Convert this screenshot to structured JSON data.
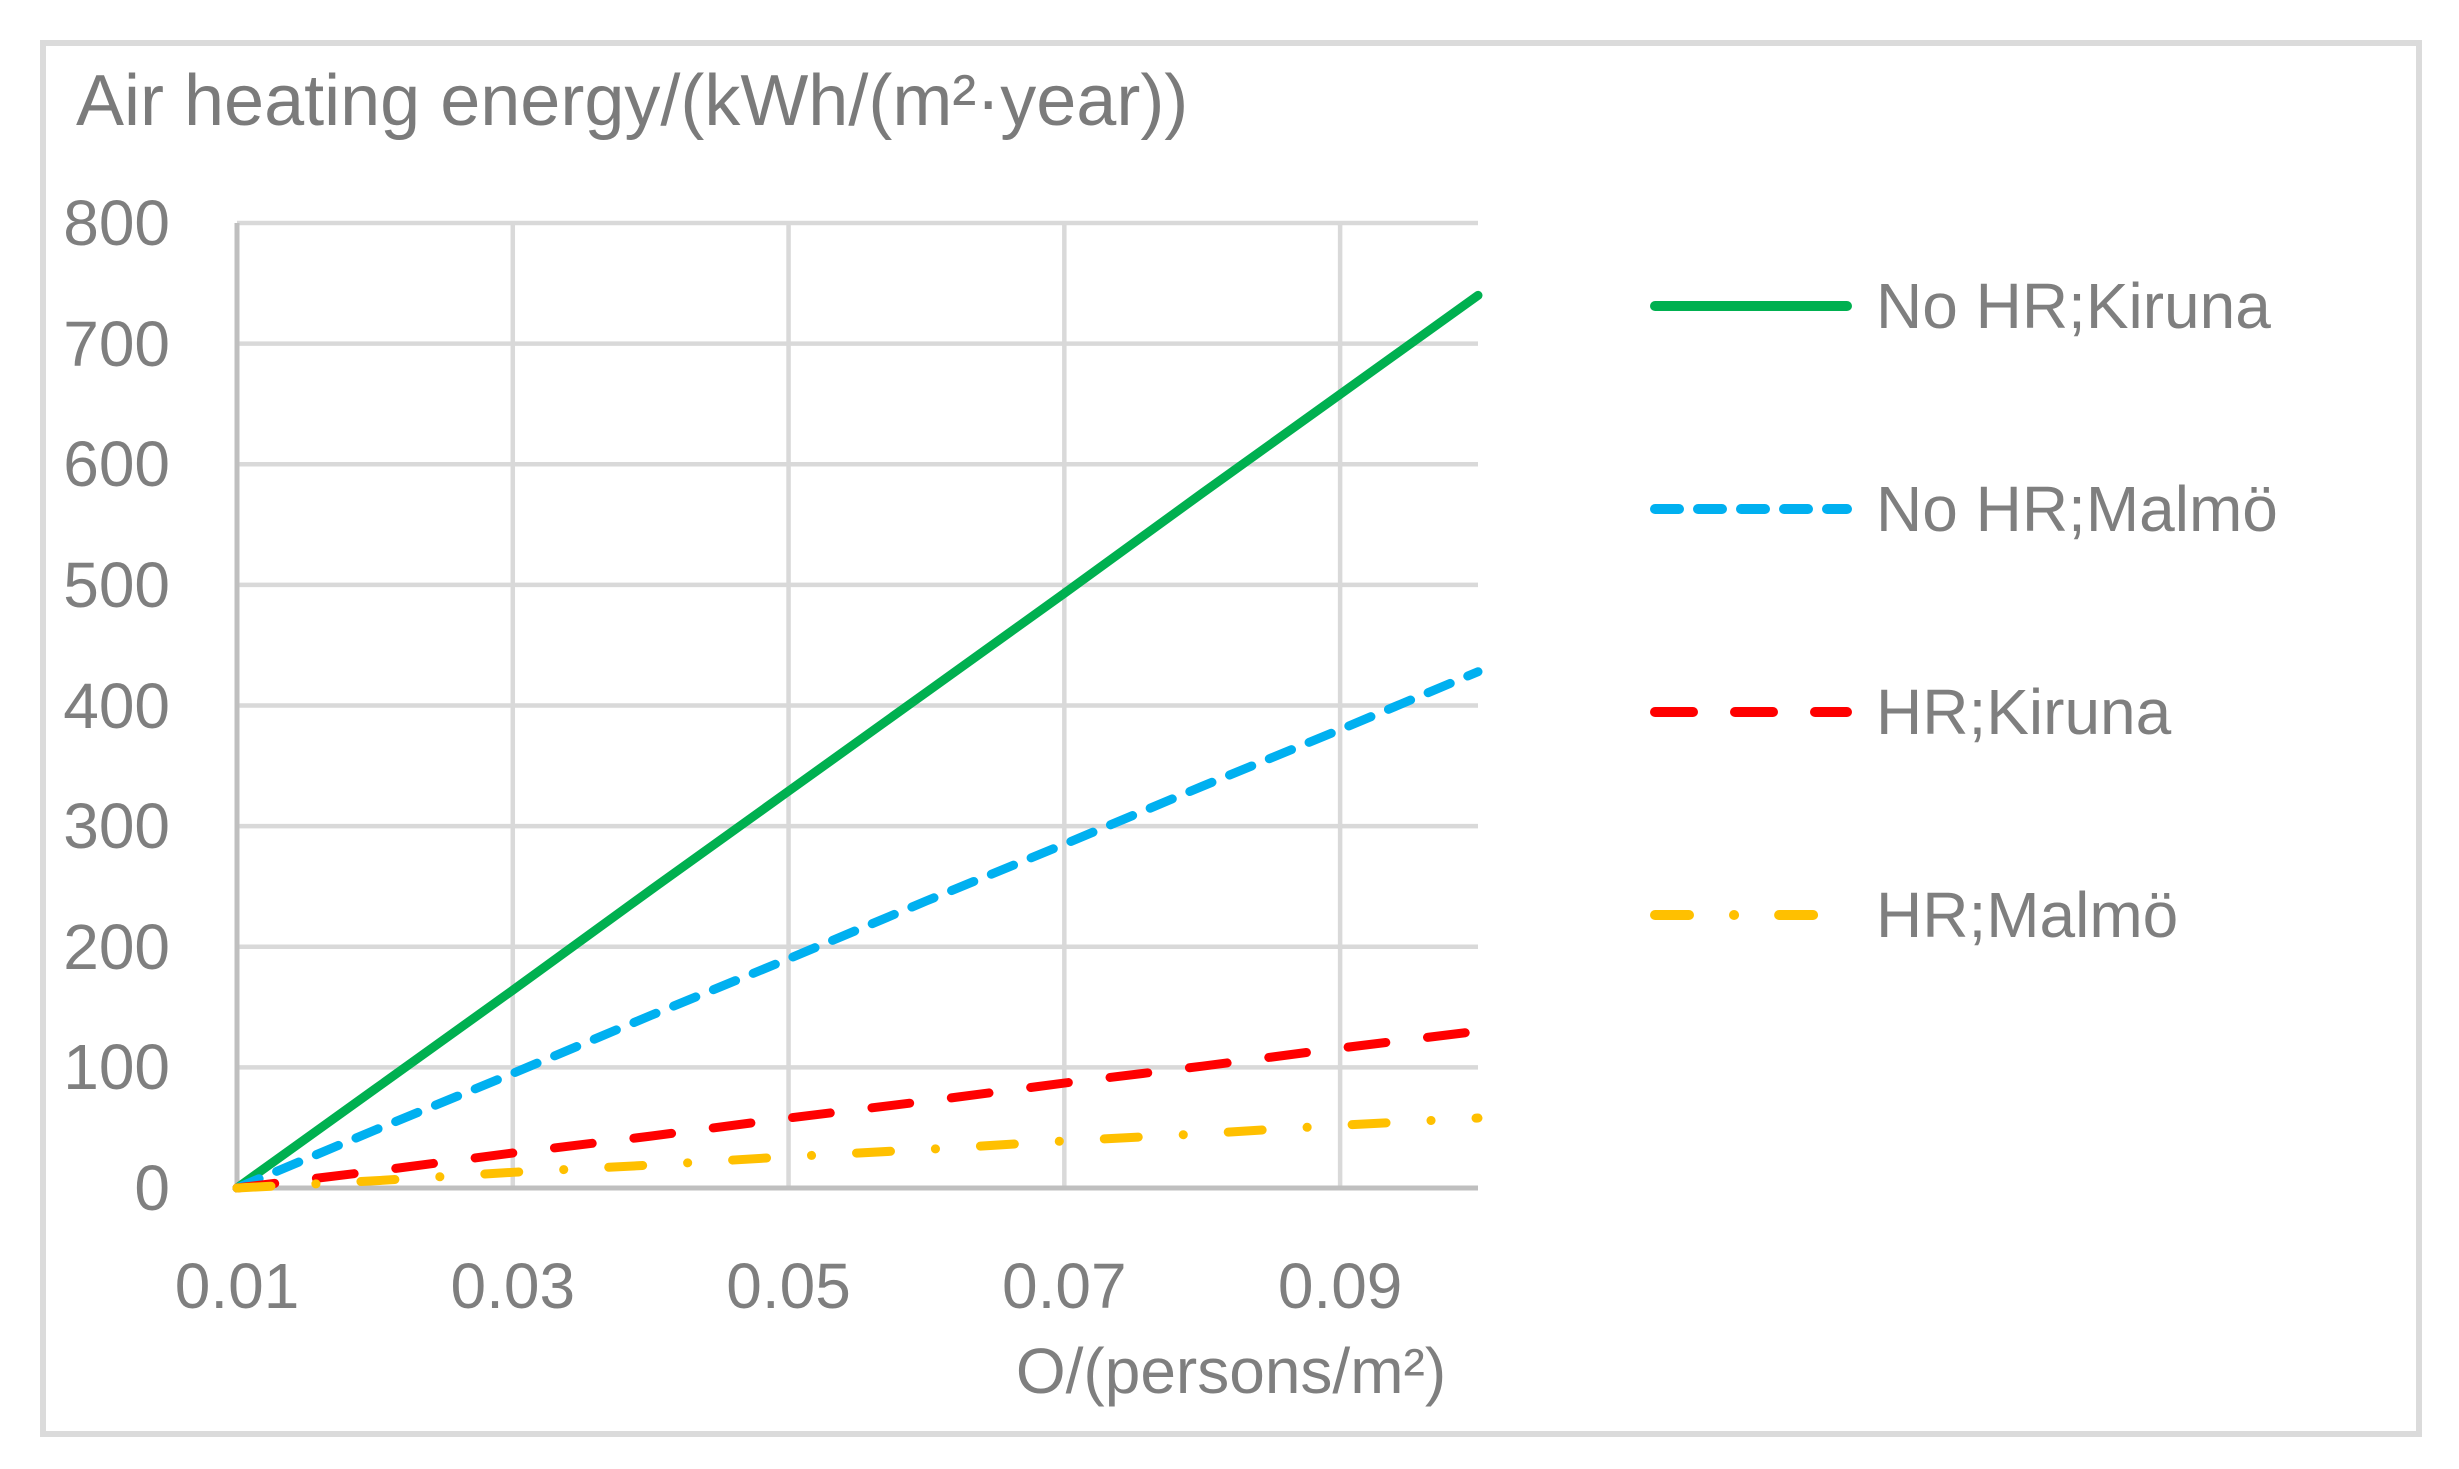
{
  "chart_data": {
    "type": "line",
    "title": "Air heating energy/(kWh/(m²·year))",
    "xlabel": "O/(persons/m²)",
    "ylabel": "",
    "xlim": [
      0.01,
      0.1
    ],
    "ylim": [
      0,
      800
    ],
    "x_ticks": [
      0.01,
      0.03,
      0.05,
      0.07,
      0.09
    ],
    "x_tick_labels": [
      "0.01",
      "0.03",
      "0.05",
      "0.07",
      "0.09"
    ],
    "x_gridlines": [
      0.03,
      0.05,
      0.07,
      0.09
    ],
    "y_ticks": [
      0,
      100,
      200,
      300,
      400,
      500,
      600,
      700,
      800
    ],
    "y_tick_labels": [
      "0",
      "100",
      "200",
      "300",
      "400",
      "500",
      "600",
      "700",
      "800"
    ],
    "grid": true,
    "legend_position": "right",
    "x": [
      0.01,
      0.02,
      0.03,
      0.04,
      0.05,
      0.06,
      0.07,
      0.08,
      0.09,
      0.1
    ],
    "series": [
      {
        "name": "No HR;Kiruna",
        "color": "#00B050",
        "style": "solid",
        "values": [
          0,
          82,
          164,
          247,
          329,
          411,
          493,
          576,
          658,
          740
        ]
      },
      {
        "name": "No HR;Malmö",
        "color": "#00B0F0",
        "style": "dashed",
        "values": [
          0,
          48,
          95,
          143,
          190,
          238,
          285,
          333,
          380,
          428
        ]
      },
      {
        "name": "HR;Kiruna",
        "color": "#FF0000",
        "style": "long-dash",
        "values": [
          0,
          14,
          29,
          43,
          58,
          72,
          87,
          101,
          116,
          130
        ]
      },
      {
        "name": "HR;Malmö",
        "color": "#FFC000",
        "style": "dash-dot",
        "values": [
          0,
          6,
          13,
          19,
          26,
          32,
          39,
          45,
          52,
          58
        ]
      }
    ],
    "colors": {
      "gridline": "#D9D9D9",
      "axis": "#BFBFBF",
      "text": "#7F7F7F"
    }
  }
}
